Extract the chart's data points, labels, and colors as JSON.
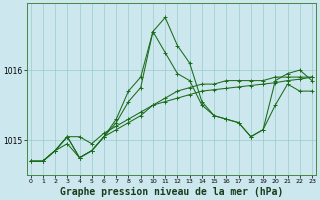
{
  "title": "Graphe pression niveau de la mer (hPa)",
  "background_color": "#cce8ee",
  "grid_color": "#99cccc",
  "line_color": "#1a6b1a",
  "x_values": [
    0,
    1,
    2,
    3,
    4,
    5,
    6,
    7,
    8,
    9,
    10,
    11,
    12,
    13,
    14,
    15,
    16,
    17,
    18,
    19,
    20,
    21,
    22,
    23
  ],
  "series": [
    [
      1014.7,
      1014.7,
      1014.85,
      1014.95,
      1014.75,
      1014.85,
      1015.05,
      1015.15,
      1015.25,
      1015.35,
      1015.5,
      1015.6,
      1015.7,
      1015.75,
      1015.8,
      1015.8,
      1015.85,
      1015.85,
      1015.85,
      1015.85,
      1015.9,
      1015.9,
      1015.9,
      1015.9
    ],
    [
      1014.7,
      1014.7,
      1014.85,
      1015.05,
      1015.05,
      1014.95,
      1015.1,
      1015.2,
      1015.3,
      1015.4,
      1015.5,
      1015.55,
      1015.6,
      1015.65,
      1015.7,
      1015.72,
      1015.74,
      1015.76,
      1015.78,
      1015.8,
      1015.82,
      1015.85,
      1015.87,
      1015.9
    ],
    [
      1014.7,
      1014.7,
      1014.85,
      1015.05,
      1014.75,
      1014.85,
      1015.05,
      1015.25,
      1015.55,
      1015.75,
      1016.55,
      1016.25,
      1015.95,
      1015.85,
      1015.5,
      1015.35,
      1015.3,
      1015.25,
      1015.05,
      1015.15,
      1015.5,
      1015.8,
      1015.7,
      1015.7
    ],
    [
      1014.7,
      1014.7,
      1014.85,
      1015.05,
      1014.75,
      1014.85,
      1015.05,
      1015.3,
      1015.7,
      1015.9,
      1016.55,
      1016.75,
      1016.35,
      1016.1,
      1015.55,
      1015.35,
      1015.3,
      1015.25,
      1015.05,
      1015.15,
      1015.85,
      1015.95,
      1016.0,
      1015.85
    ]
  ],
  "yticks": [
    1015,
    1016
  ],
  "ylim": [
    1014.5,
    1016.95
  ],
  "xlim": [
    -0.3,
    23.3
  ],
  "xlabel_fontsize": 7,
  "marker": "+",
  "markersize": 3,
  "linewidth": 0.75
}
